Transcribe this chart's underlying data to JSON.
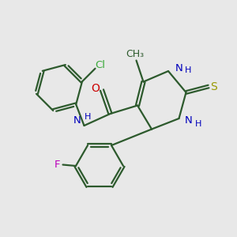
{
  "bg_color": "#e8e8e8",
  "bond_color": "#2d5a2d",
  "N_color": "#0000bb",
  "O_color": "#cc0000",
  "S_color": "#999900",
  "F_color": "#bb00bb",
  "Cl_color": "#3aaa3a",
  "line_width": 1.6,
  "font_size": 9.5,
  "fig_w": 3.0,
  "fig_h": 3.0,
  "dpi": 100,
  "xlim": [
    0,
    10
  ],
  "ylim": [
    0,
    10
  ]
}
